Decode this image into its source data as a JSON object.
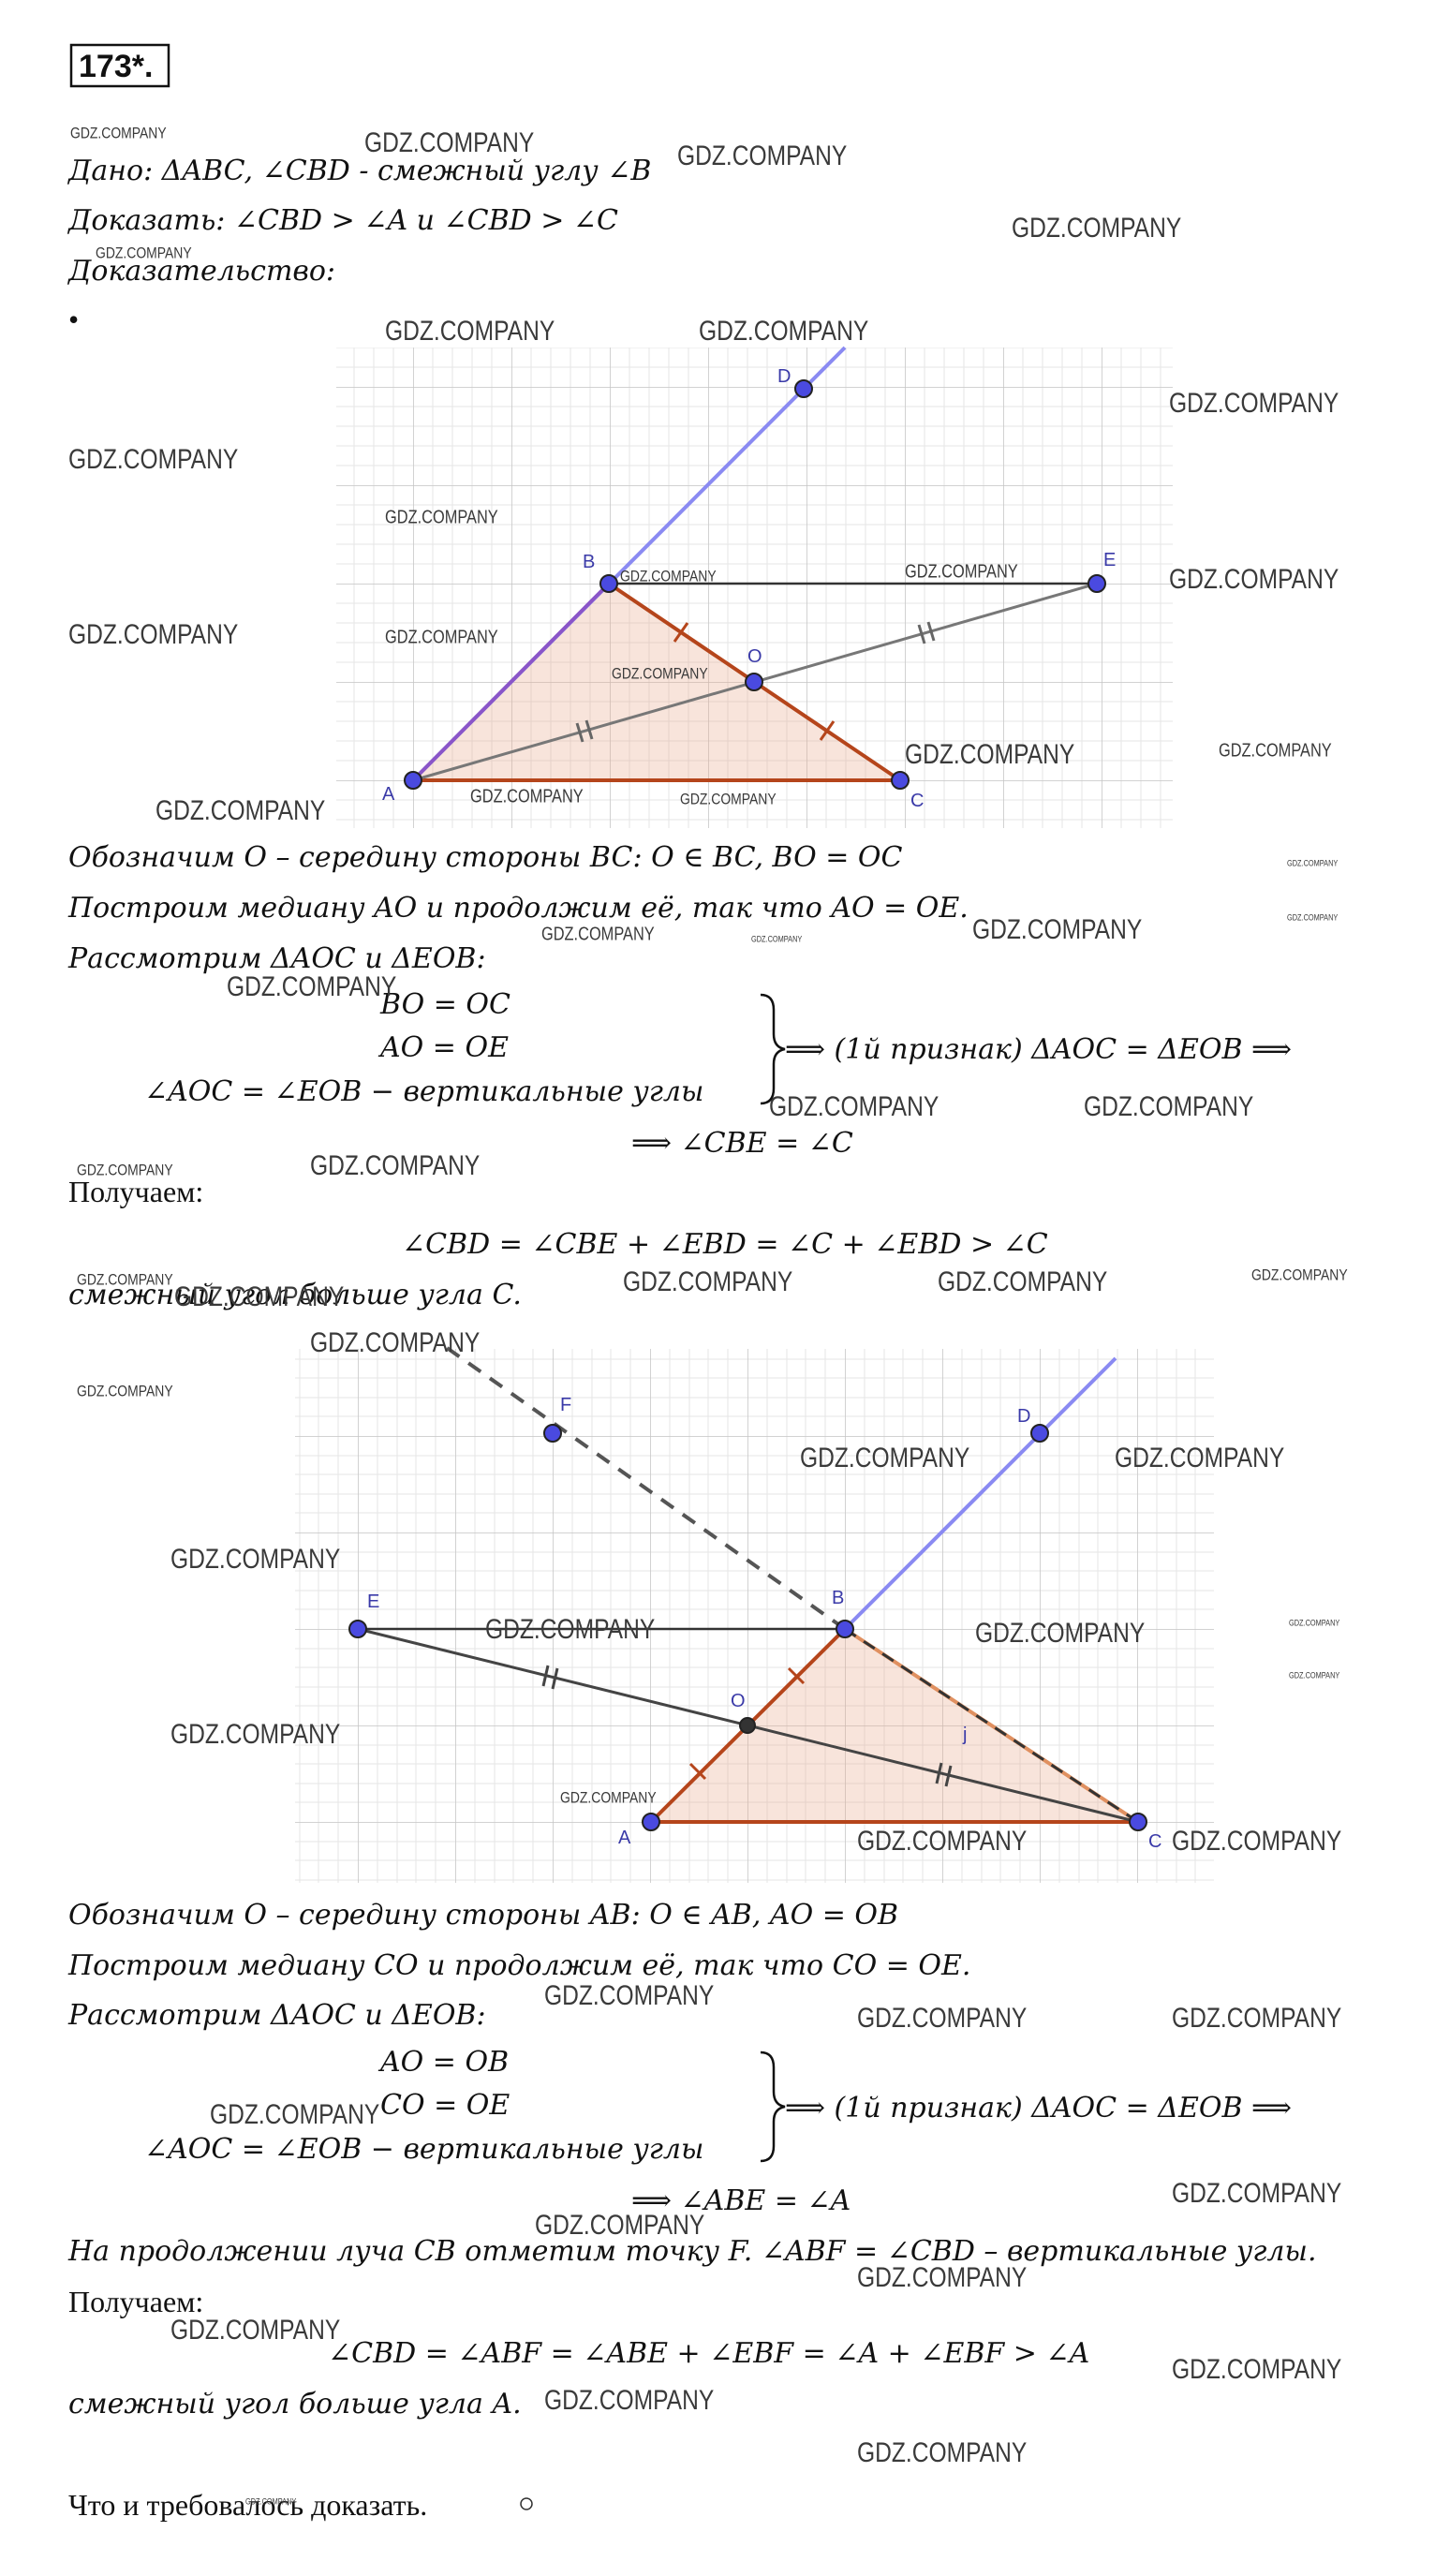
{
  "problem_number": "173*.",
  "given": "Дано: ΔABC, ∠CBD - смежный углу ∠B",
  "prove": "Доказать: ∠CBD > ∠A и ∠CBD > ∠C",
  "proof_heading": "Доказательство:",
  "bullet": "•",
  "figure1": {
    "points": [
      "A",
      "B",
      "C",
      "D",
      "E",
      "O"
    ]
  },
  "part1": {
    "lines": [
      "Обозначим O – середину стороны BC: O ∈ BC, BO = OC",
      "Построим медиану AO и продолжим её, так что AO = OE.",
      "Рассмотрим ΔAOC и ΔEOB:"
    ],
    "system": [
      "BO = OC",
      "AO = OE",
      "∠AOC = ∠EOB − вертикальные углы"
    ],
    "system_result": "⟹ (1й признак) ΔAOC = ΔEOB ⟹",
    "consequence": "⟹ ∠CBE = ∠C",
    "obtain": "Получаем:",
    "equation": "∠CBD = ∠CBE + ∠EBD = ∠C + ∠EBD > ∠C",
    "conclusion": "смежный угол больше угла C."
  },
  "figure2": {
    "points": [
      "A",
      "B",
      "C",
      "D",
      "E",
      "O",
      "F",
      "j"
    ]
  },
  "part2": {
    "lines": [
      "Обозначим O – середину стороны AB: O ∈ AB, AO = OB",
      "Построим медиану CO и продолжим её, так что CO = OE.",
      "Рассмотрим ΔAOC и ΔEOB:"
    ],
    "system": [
      "AO = OB",
      "CO = OE",
      "∠AOC = ∠EOB − вертикальные углы"
    ],
    "system_result": "⟹ (1й признак) ΔAOC = ΔEOB ⟹",
    "consequence": "⟹ ∠ABE = ∠A",
    "extension": "На продолжении луча CB отметим точку F. ∠ABF = ∠CBD – вертикальные углы.",
    "obtain": "Получаем:",
    "equation": "∠CBD = ∠ABF = ∠ABE + ∠EBF = ∠A + ∠EBF > ∠A",
    "conclusion": "смежный угол больше угла A."
  },
  "ending": "Что и требовалось доказать.",
  "watermarks": [
    "GDZ.COMPANY",
    "GDZ.COMPANY",
    "GDZ.COMPANY",
    "GDZ.COMPANY",
    "GDZ.COMPANY",
    "GDZ.COMPANY",
    "GDZ.COMPANY",
    "GDZ.COMPANY",
    "GDZ.COMPANY",
    "GDZ.COMPANY",
    "GDZ.COMPANY",
    "GDZ.COMPANY",
    "GDZ.COMPANY",
    "GDZ.COMPANY",
    "GDZ.COMPANY",
    "GDZ.COMPANY",
    "GDZ.COMPANY",
    "GDZ.COMPANY",
    "GDZ.COMPANY",
    "GDZ.COMPANY",
    "GDZ.COMPANY",
    "GDZ.COMPANY",
    "GDZ.COMPANY",
    "GDZ.COMPANY",
    "GDZ.COMPANY",
    "GDZ.COMPANY",
    "GDZ.COMPANY",
    "GDZ.COMPANY",
    "GDZ.COMPANY",
    "GDZ.COMPANY",
    "GDZ.COMPANY",
    "GDZ.COMPANY",
    "GDZ.COMPANY",
    "GDZ.COMPANY",
    "GDZ.COMPANY",
    "GDZ.COMPANY",
    "GDZ.COMPANY",
    "GDZ.COMPANY",
    "GDZ.COMPANY",
    "GDZ.COMPANY",
    "GDZ.COMPANY",
    "GDZ.COMPANY",
    "GDZ.COMPANY",
    "GDZ.COMPANY",
    "GDZ.COMPANY",
    "GDZ.COMPANY",
    "GDZ.COMPANY",
    "GDZ.COMPANY",
    "GDZ.COMPANY",
    "GDZ.COMPANY",
    "GDZ.COMPANY",
    "GDZ.COMPANY",
    "GDZ.COMPANY",
    "GDZ.COMPANY",
    "GDZ.COMPANY",
    "GDZ.COMPANY",
    "GDZ.COMPANY",
    "GDZ.COMPANY",
    "GDZ.COMPANY",
    "GDZ.COMPANY",
    "GDZ.COMPANY"
  ]
}
